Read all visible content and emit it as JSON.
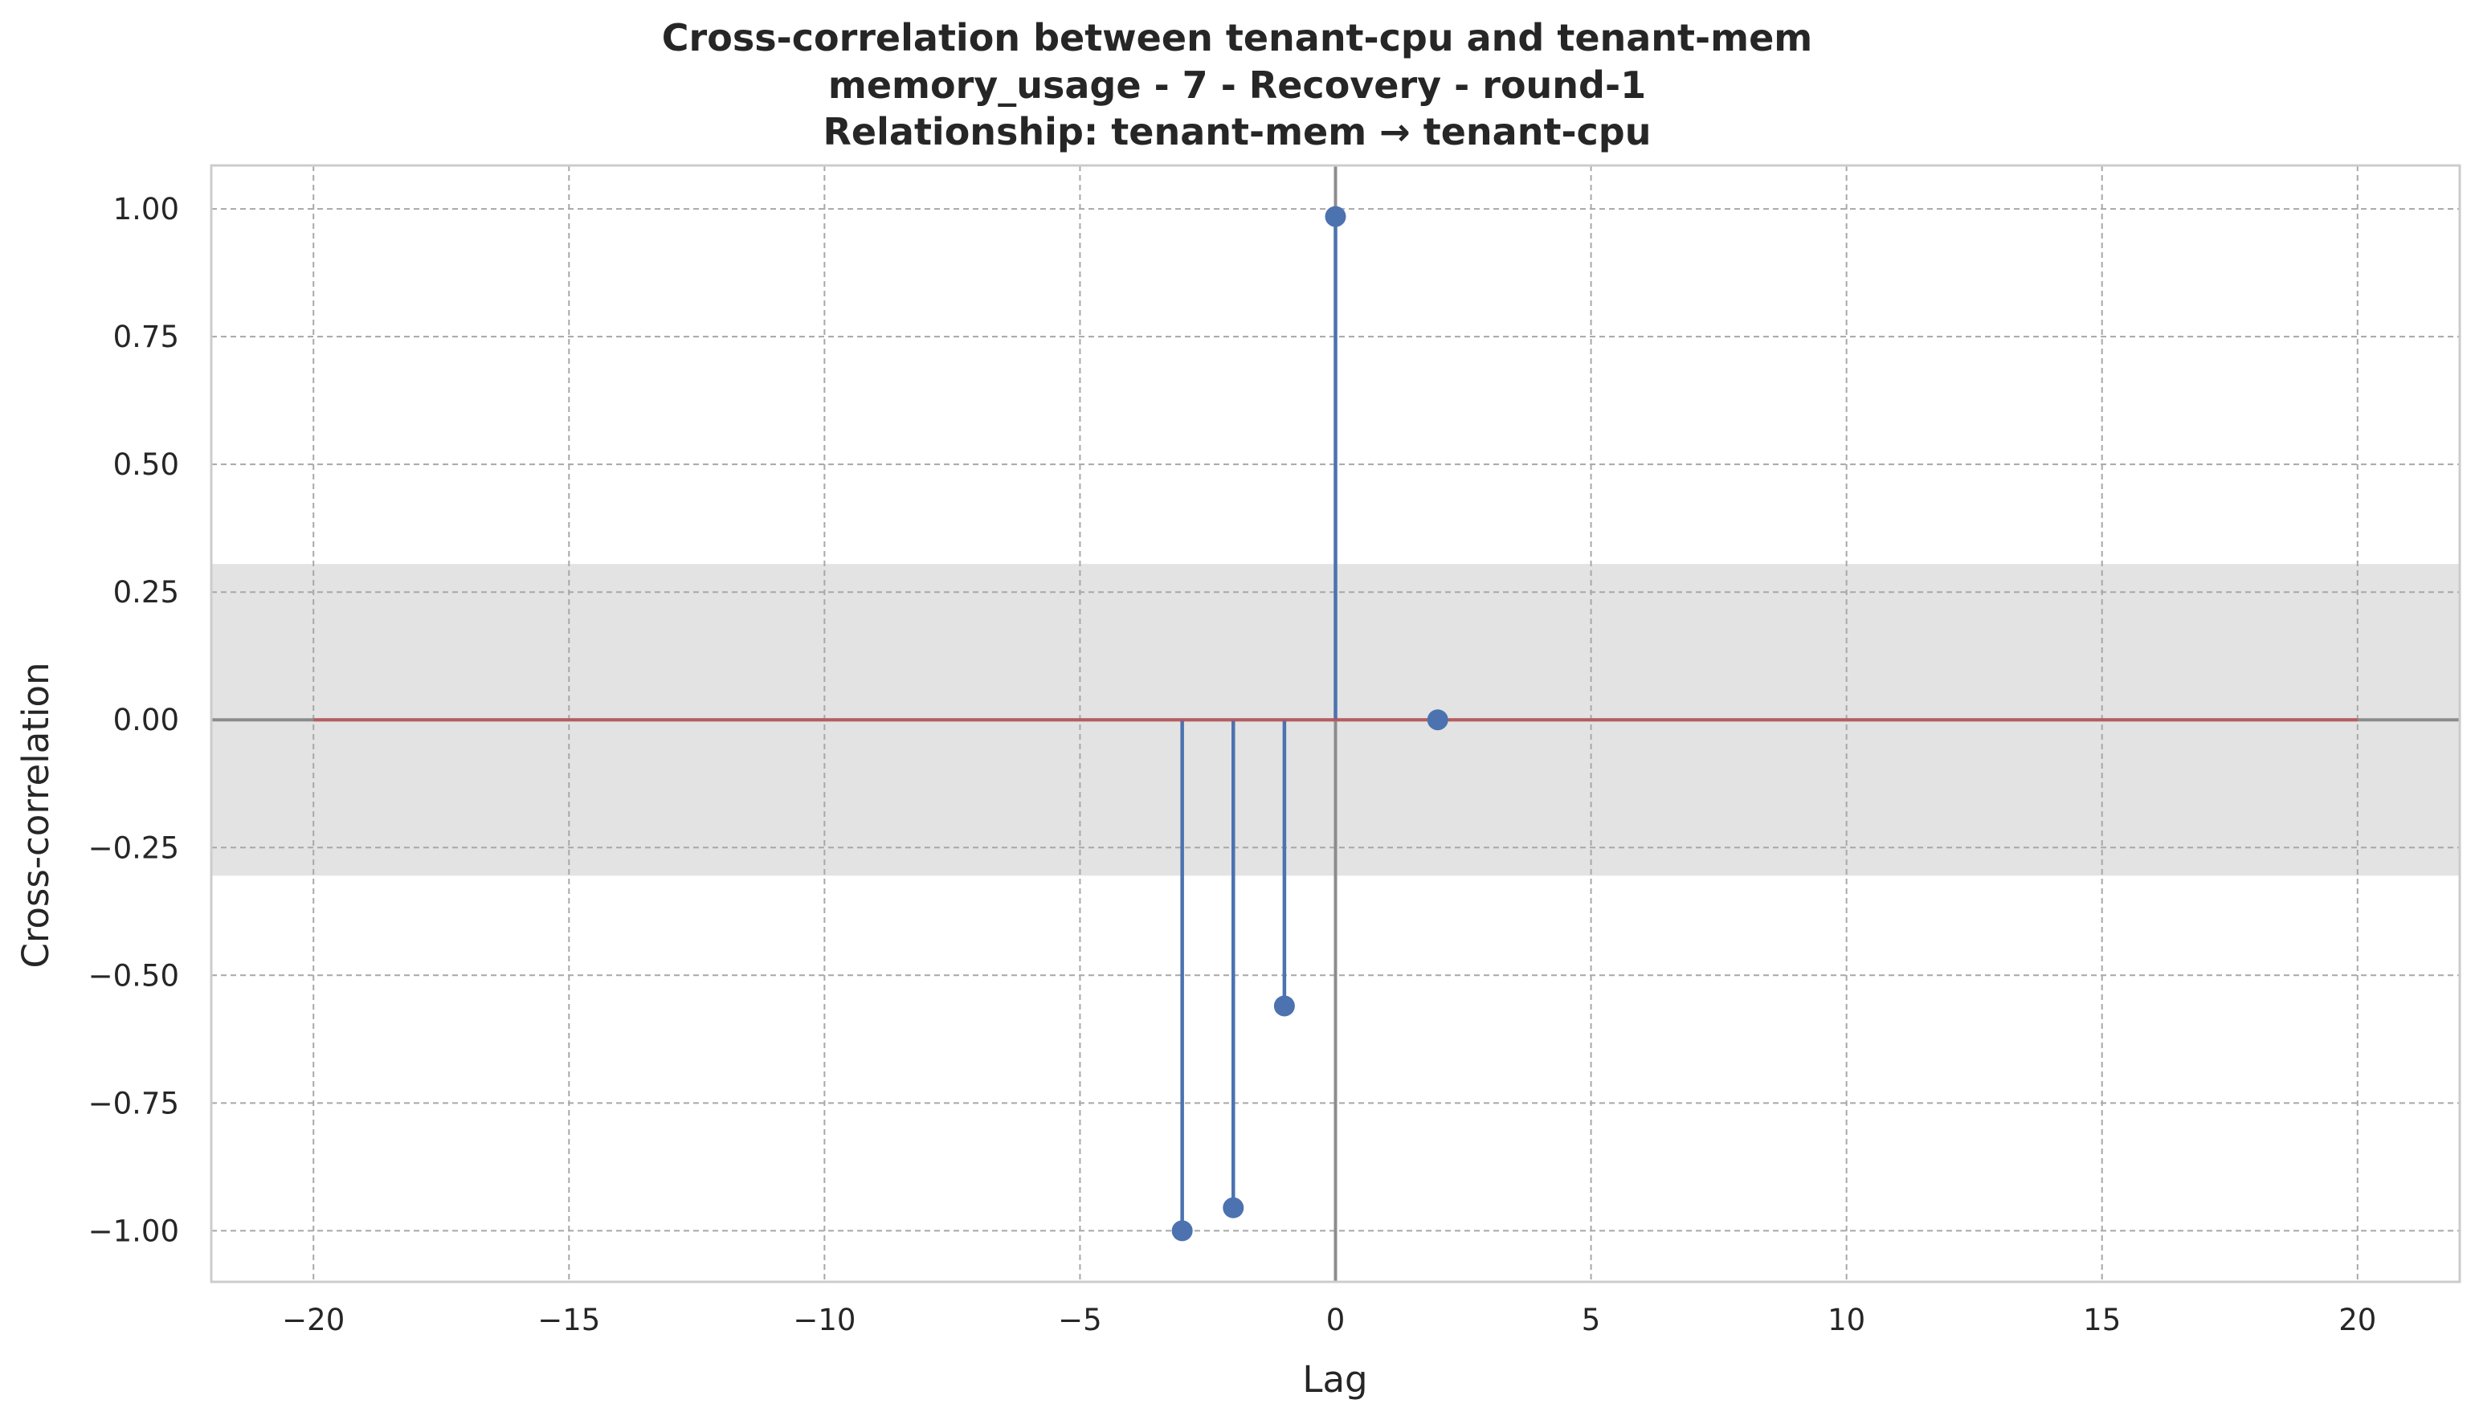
{
  "chart_data": {
    "type": "stem",
    "title_lines": [
      "Cross-correlation between tenant-cpu and tenant-mem",
      "memory_usage - 7 - Recovery - round-1",
      "Relationship: tenant-mem → tenant-cpu"
    ],
    "xlabel": "Lag",
    "ylabel": "Cross-correlation",
    "xlim": [
      -22,
      22
    ],
    "ylim": [
      -1.1,
      1.085
    ],
    "xticks": [
      -20,
      -15,
      -10,
      -5,
      0,
      5,
      10,
      15,
      20
    ],
    "xtick_labels": [
      "−20",
      "−15",
      "−10",
      "−5",
      "0",
      "5",
      "10",
      "15",
      "20"
    ],
    "yticks": [
      1.0,
      0.75,
      0.5,
      0.25,
      0.0,
      -0.25,
      -0.5,
      -0.75,
      -1.0
    ],
    "ytick_labels": [
      "1.00",
      "0.75",
      "0.50",
      "0.25",
      "0.00",
      "−0.25",
      "−0.50",
      "−0.75",
      "−1.00"
    ],
    "grid": true,
    "confidence_band": [
      -0.305,
      0.305
    ],
    "baseline": {
      "y": 0,
      "x_range": [
        -20,
        20
      ]
    },
    "reference_lines": {
      "horizontal": 0,
      "vertical": 0
    },
    "stems": [
      {
        "lag": -3,
        "value": -1.0
      },
      {
        "lag": -2,
        "value": -0.955
      },
      {
        "lag": -1,
        "value": -0.56
      },
      {
        "lag": 0,
        "value": 0.985
      },
      {
        "lag": 2,
        "value": 0.0
      }
    ],
    "colors": {
      "stem": "#4c72b0",
      "baseline": "#c44e52",
      "band": "#e3e3e3",
      "grid": "#a8a8a8",
      "reference": "#8c8c8c",
      "frame": "#cccccc"
    }
  }
}
